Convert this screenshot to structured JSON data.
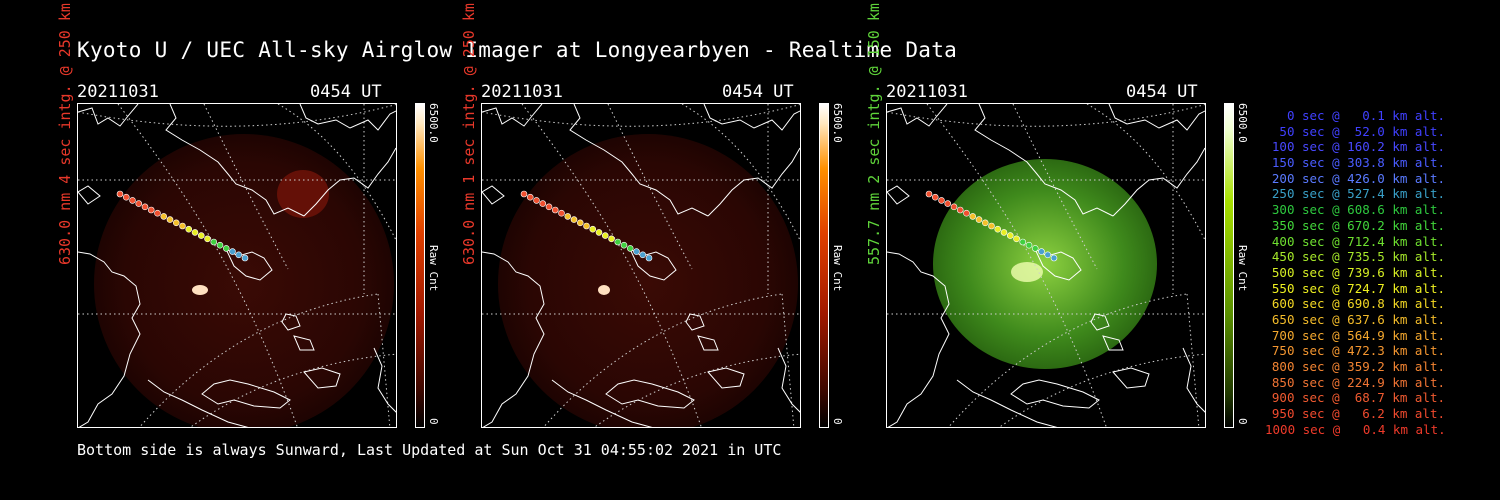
{
  "title": "Kyoto U / UEC All-sky Airglow Imager at Longyearbyen - Realtime Data",
  "footer": "Bottom side is always Sunward, Last Updated at Sun Oct 31 04:55:02 2021 in UTC",
  "panels": [
    {
      "date": "20211031",
      "time": "0454 UT",
      "ylabel": "630.0 nm 4 sec intg. @ 250 km",
      "ylabel_color": "#e8382a",
      "tone": "red",
      "colorbar": {
        "max": "6500.0",
        "unit": "Raw Cnt",
        "min": "0"
      }
    },
    {
      "date": "20211031",
      "time": "0454 UT",
      "ylabel": "630.0 nm 1 sec intg. @ 250 km",
      "ylabel_color": "#e8382a",
      "tone": "red",
      "colorbar": {
        "max": "6500.0",
        "unit": "Raw Cnt",
        "min": "0"
      }
    },
    {
      "date": "20211031",
      "time": "0454 UT",
      "ylabel": "557.7 nm 2 sec intg. @ 150 km",
      "ylabel_color": "#5fd43a",
      "tone": "green",
      "colorbar": {
        "max": "6500.0",
        "unit": "Raw Cnt",
        "min": "0"
      }
    }
  ],
  "legend": [
    {
      "text": "0 sec @   0.1 km alt.",
      "color": "#4040ff"
    },
    {
      "text": "50 sec @  52.0 km alt.",
      "color": "#4040ff"
    },
    {
      "text": "100 sec @ 160.2 km alt.",
      "color": "#4848ff"
    },
    {
      "text": "150 sec @ 303.8 km alt.",
      "color": "#4a5cff"
    },
    {
      "text": "200 sec @ 426.0 km alt.",
      "color": "#5a7aff"
    },
    {
      "text": "250 sec @ 527.4 km alt.",
      "color": "#39a0c8"
    },
    {
      "text": "300 sec @ 608.6 km alt.",
      "color": "#2ec83e"
    },
    {
      "text": "350 sec @ 670.2 km alt.",
      "color": "#42d63a"
    },
    {
      "text": "400 sec @ 712.4 km alt.",
      "color": "#6fe030"
    },
    {
      "text": "450 sec @ 735.5 km alt.",
      "color": "#a6e82a"
    },
    {
      "text": "500 sec @ 739.6 km alt.",
      "color": "#d6ee24"
    },
    {
      "text": "550 sec @ 724.7 km alt.",
      "color": "#eef020"
    },
    {
      "text": "600 sec @ 690.8 km alt.",
      "color": "#f4d824"
    },
    {
      "text": "650 sec @ 637.6 km alt.",
      "color": "#f4bc2a"
    },
    {
      "text": "700 sec @ 564.9 km alt.",
      "color": "#f4a82e"
    },
    {
      "text": "750 sec @ 472.3 km alt.",
      "color": "#f49630"
    },
    {
      "text": "800 sec @ 359.2 km alt.",
      "color": "#f28432"
    },
    {
      "text": "850 sec @ 224.9 km alt.",
      "color": "#f07434"
    },
    {
      "text": "900 sec @  68.7 km alt.",
      "color": "#f05a30"
    },
    {
      "text": "950 sec @   6.2 km alt.",
      "color": "#f04a2e"
    },
    {
      "text": "1000 sec @   0.4 km alt.",
      "color": "#ee3a2a"
    }
  ]
}
